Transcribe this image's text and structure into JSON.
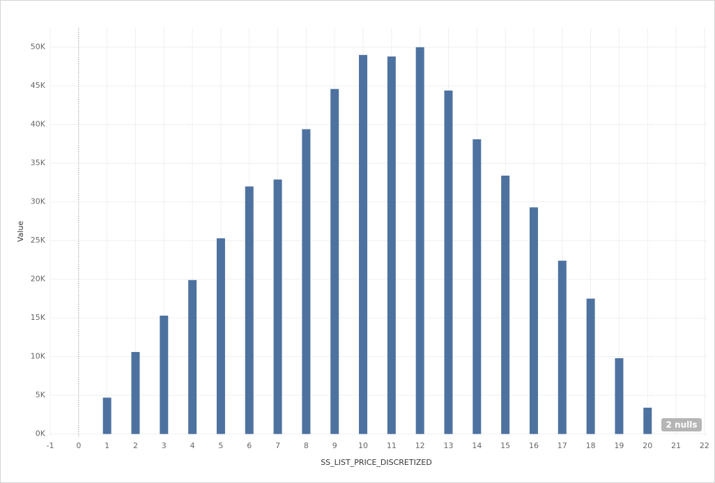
{
  "chart_data": {
    "type": "bar",
    "x_label": "SS_LIST_PRICE_DISCRETIZED",
    "y_label": "Value",
    "x": [
      1,
      2,
      3,
      4,
      5,
      6,
      7,
      8,
      9,
      10,
      11,
      12,
      13,
      14,
      15,
      16,
      17,
      18,
      19,
      20
    ],
    "values": [
      4700,
      10600,
      15300,
      19900,
      25300,
      32000,
      32900,
      39400,
      44600,
      49000,
      48800,
      50000,
      44400,
      38100,
      33400,
      29300,
      22400,
      17500,
      9800,
      3400
    ],
    "color": "#4e72a0",
    "xlim": [
      -1,
      22.1
    ],
    "xticks": [
      -1,
      0,
      1,
      2,
      3,
      4,
      5,
      6,
      7,
      8,
      9,
      10,
      11,
      12,
      13,
      14,
      15,
      16,
      17,
      18,
      19,
      20,
      21,
      22
    ],
    "ylim": [
      -300,
      52500
    ],
    "yticks": [
      {
        "value": 0,
        "label": "0K"
      },
      {
        "value": 5000,
        "label": "5K"
      },
      {
        "value": 10000,
        "label": "10K"
      },
      {
        "value": 15000,
        "label": "15K"
      },
      {
        "value": 20000,
        "label": "20K"
      },
      {
        "value": 25000,
        "label": "25K"
      },
      {
        "value": 30000,
        "label": "30K"
      },
      {
        "value": 35000,
        "label": "35K"
      },
      {
        "value": 40000,
        "label": "40K"
      },
      {
        "value": 45000,
        "label": "45K"
      },
      {
        "value": 50000,
        "label": "50K"
      }
    ],
    "grid": true,
    "null_indicator": "2 nulls"
  }
}
